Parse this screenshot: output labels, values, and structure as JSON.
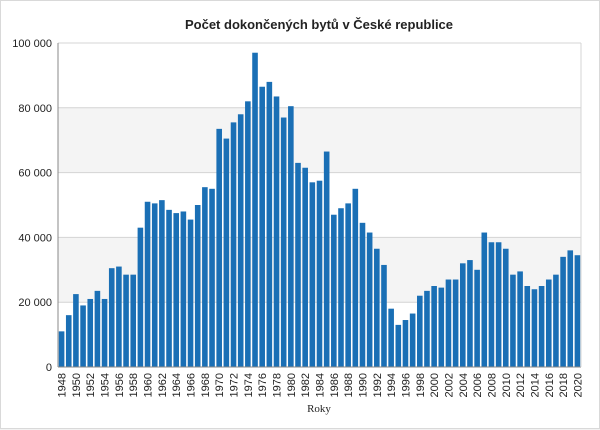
{
  "chart_data": {
    "type": "bar",
    "title": "Počet dokončených bytů v České republice",
    "xlabel": "Roky",
    "ylabel": "",
    "ylim": [
      0,
      100000
    ],
    "y_ticks": [
      0,
      20000,
      40000,
      60000,
      80000,
      100000
    ],
    "y_tick_labels": [
      "0",
      "20 000",
      "40 000",
      "60 000",
      "80 000",
      "100 000"
    ],
    "x_tick_labels": [
      "1948",
      "1950",
      "1952",
      "1954",
      "1956",
      "1958",
      "1960",
      "1962",
      "1964",
      "1966",
      "1968",
      "1970",
      "1972",
      "1974",
      "1976",
      "1978",
      "1980",
      "1982",
      "1984",
      "1986",
      "1988",
      "1990",
      "1992",
      "1994",
      "1996",
      "1998",
      "2000",
      "2002",
      "2004",
      "2006",
      "2008",
      "2010",
      "2012",
      "2014",
      "2016",
      "2018",
      "2020"
    ],
    "grid": true,
    "legend": "none",
    "bar_color": "#1a6fb5",
    "categories": [
      1948,
      1949,
      1950,
      1951,
      1952,
      1953,
      1954,
      1955,
      1956,
      1957,
      1958,
      1959,
      1960,
      1961,
      1962,
      1963,
      1964,
      1965,
      1966,
      1967,
      1968,
      1969,
      1970,
      1971,
      1972,
      1973,
      1974,
      1975,
      1976,
      1977,
      1978,
      1979,
      1980,
      1981,
      1982,
      1983,
      1984,
      1985,
      1986,
      1987,
      1988,
      1989,
      1990,
      1991,
      1992,
      1993,
      1994,
      1995,
      1996,
      1997,
      1998,
      1999,
      2000,
      2001,
      2002,
      2003,
      2004,
      2005,
      2006,
      2007,
      2008,
      2009,
      2010,
      2011,
      2012,
      2013,
      2014,
      2015,
      2016,
      2017,
      2018,
      2019,
      2020
    ],
    "values": [
      11000,
      16000,
      22500,
      19000,
      21000,
      23500,
      21000,
      30500,
      31000,
      28500,
      28500,
      43000,
      51000,
      50500,
      51500,
      48500,
      47500,
      48000,
      45500,
      50000,
      55500,
      55000,
      73500,
      70500,
      75500,
      78000,
      82000,
      97000,
      86500,
      88000,
      83500,
      77000,
      80500,
      63000,
      61500,
      57000,
      57500,
      66500,
      47000,
      49000,
      50500,
      55000,
      44500,
      41500,
      36500,
      31500,
      18000,
      13000,
      14500,
      16500,
      22000,
      23500,
      25000,
      24500,
      27000,
      27000,
      32000,
      33000,
      30000,
      41500,
      38500,
      38500,
      36500,
      28500,
      29500,
      25000,
      24000,
      25000,
      27000,
      28500,
      34000,
      36000,
      34500
    ]
  }
}
